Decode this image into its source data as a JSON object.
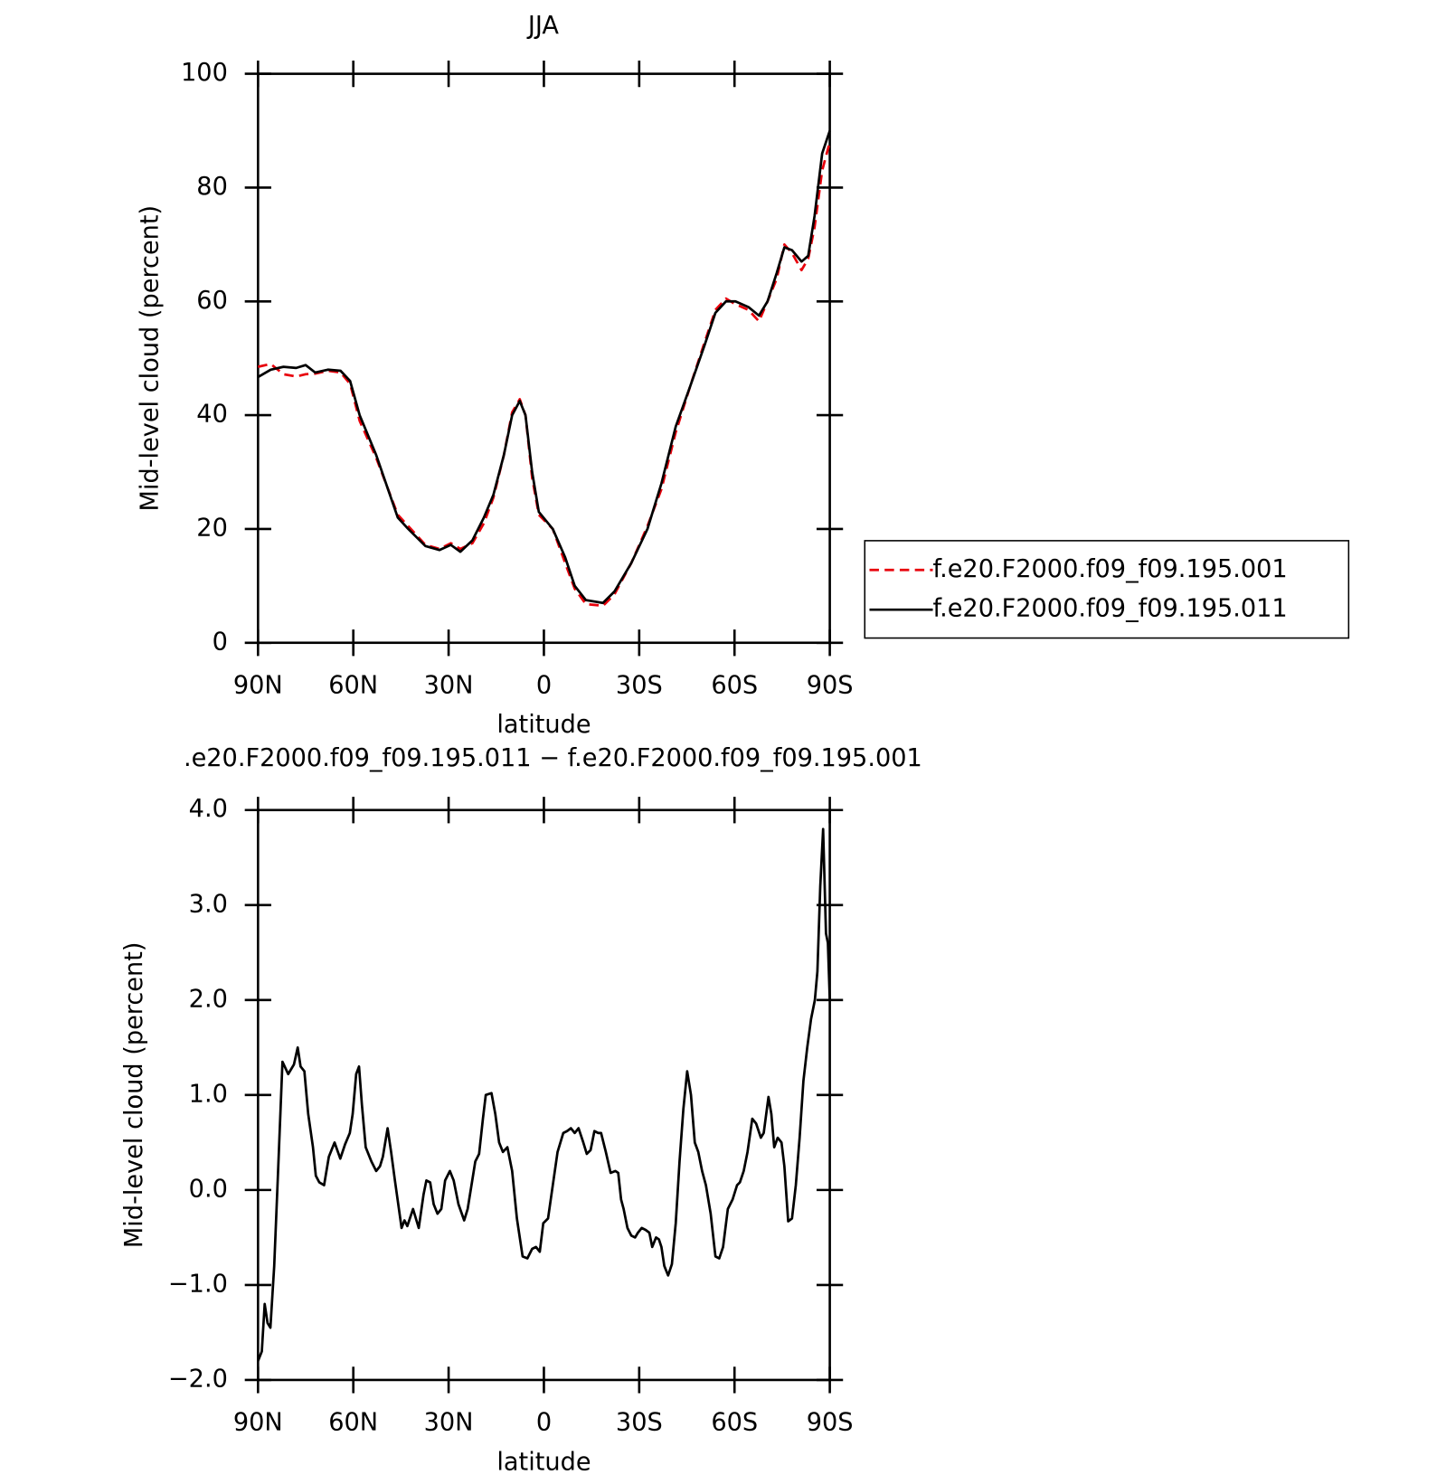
{
  "chart_data": [
    {
      "type": "line",
      "title": "JJA",
      "xlabel": "latitude",
      "ylabel": "Mid-level cloud (percent)",
      "x": [
        90,
        86,
        82,
        78,
        75,
        72,
        68,
        64,
        61,
        58,
        52.8,
        46,
        42.7,
        37.3,
        32.9,
        29.3,
        26.3,
        22.5,
        18.9,
        15.9,
        12.6,
        10,
        7.6,
        5.8,
        3.7,
        1.6,
        -2.8,
        -6.7,
        -9.7,
        -13.2,
        -18.6,
        -22.2,
        -27.5,
        -32.6,
        -37,
        -41.5,
        -46,
        -50.4,
        -54,
        -57.3,
        -60.3,
        -64.4,
        -67.7,
        -70.4,
        -73.3,
        -75.7,
        -78.1,
        -81.1,
        -83.2,
        -85.2,
        -87.6,
        -90
      ],
      "series": [
        {
          "name": "f.e20.F2000.f09_f09.195.001",
          "color": "#e8000b",
          "dash": "dashed",
          "values": [
            48.5,
            49,
            47.2,
            46.8,
            47.2,
            47.3,
            47.8,
            47.5,
            45.5,
            39,
            32.5,
            22.5,
            20.5,
            17.2,
            16.5,
            17.5,
            16.5,
            17.5,
            21,
            25.5,
            33,
            40.5,
            42.8,
            40,
            29,
            22.5,
            20,
            14,
            9.5,
            6.8,
            6.5,
            8.5,
            14,
            20.5,
            27,
            37,
            45,
            52.5,
            58.5,
            60.5,
            59.5,
            58.5,
            56.5,
            60,
            64,
            70,
            68.5,
            65.5,
            67.5,
            73,
            83,
            88
          ]
        },
        {
          "name": "f.e20.F2000.f09_f09.195.011",
          "color": "#000000",
          "dash": "solid",
          "values": [
            46.7,
            48,
            48.5,
            48.3,
            48.8,
            47.5,
            48,
            47.8,
            46,
            40,
            33,
            22,
            20,
            17,
            16.3,
            17.2,
            16,
            18,
            22,
            26,
            33,
            40,
            42.5,
            40,
            30,
            23,
            20,
            15,
            10,
            7.5,
            7,
            9,
            14,
            20,
            28,
            38,
            45,
            52,
            58,
            60,
            60,
            59,
            57.5,
            60,
            65,
            69.5,
            69,
            67,
            68,
            75,
            86,
            90
          ]
        }
      ],
      "xlim": [
        90,
        -90
      ],
      "xticks": [
        {
          "value": 90,
          "label": "90N"
        },
        {
          "value": 60,
          "label": "60N"
        },
        {
          "value": 30,
          "label": "30N"
        },
        0,
        {
          "value": -30,
          "label": "30S"
        },
        {
          "value": -60,
          "label": "60S"
        },
        {
          "value": -90,
          "label": "90S"
        }
      ],
      "ylim": [
        0,
        100
      ],
      "yticks": [
        0,
        20,
        40,
        60,
        80,
        100
      ],
      "legend": "right"
    },
    {
      "type": "line",
      "title": ".e20.F2000.f09_f09.195.011 − f.e20.F2000.f09_f09.195.001",
      "xlabel": "latitude",
      "ylabel": "Mid-level cloud (percent)",
      "x": [
        90,
        88.8,
        87.9,
        87,
        86.1,
        84.9,
        83.8,
        82.3,
        80.5,
        78.7,
        77.5,
        76.6,
        75.4,
        74.2,
        72.7,
        71.8,
        70.7,
        69.2,
        67.7,
        65.9,
        64.1,
        62.6,
        61.1,
        60.2,
        59.1,
        58.2,
        57.3,
        56.1,
        54.3,
        52.8,
        51.6,
        50.7,
        49.2,
        48.1,
        46.9,
        44.8,
        43.9,
        43,
        41.2,
        39.4,
        37.9,
        37,
        35.8,
        34.7,
        33.5,
        32.3,
        31.1,
        29.6,
        28.4,
        26.9,
        25.1,
        24,
        22.8,
        21.6,
        20.4,
        19.2,
        18.3,
        16.5,
        15.3,
        14.1,
        12.9,
        11.5,
        10,
        8.5,
        6.7,
        5.2,
        3.7,
        2.5,
        1.3,
        0.2,
        -1.3,
        -2.8,
        -4.3,
        -6.1,
        -7.3,
        -8.5,
        -9.7,
        -10.9,
        -12.4,
        -13.5,
        -14.7,
        -15.9,
        -17.1,
        -18,
        -19.5,
        -21,
        -22.5,
        -23.4,
        -24.3,
        -25.1,
        -26.3,
        -27.5,
        -28.7,
        -29.6,
        -30.8,
        -32,
        -33.2,
        -34.1,
        -35.3,
        -36.2,
        -37,
        -37.9,
        -39.1,
        -40.3,
        -41.5,
        -42.7,
        -43.9,
        -45.1,
        -46.3,
        -47.5,
        -48.6,
        -49.8,
        -51,
        -52.5,
        -54,
        -55.2,
        -56.4,
        -57.9,
        -59.4,
        -60.8,
        -61.7,
        -62.9,
        -64.1,
        -65.6,
        -66.8,
        -68.3,
        -69.2,
        -70.7,
        -71.6,
        -72.5,
        -73.6,
        -74.8,
        -75.7,
        -76.9,
        -78.1,
        -79.3,
        -80.5,
        -81.7,
        -82.9,
        -84.1,
        -85.3,
        -86.1,
        -87,
        -87.9,
        -88.8,
        -89.4,
        -90
      ],
      "series": [
        {
          "color": "#000000",
          "dash": "solid",
          "values": [
            -1.8,
            -1.7,
            -1.2,
            -1.4,
            -1.45,
            -0.8,
            0.1,
            1.35,
            1.22,
            1.32,
            1.5,
            1.3,
            1.25,
            0.8,
            0.45,
            0.15,
            0.08,
            0.05,
            0.35,
            0.5,
            0.33,
            0.48,
            0.6,
            0.8,
            1.22,
            1.3,
            0.9,
            0.45,
            0.3,
            0.2,
            0.25,
            0.35,
            0.65,
            0.4,
            0.1,
            -0.4,
            -0.32,
            -0.38,
            -0.2,
            -0.4,
            -0.05,
            0.1,
            0.08,
            -0.15,
            -0.25,
            -0.2,
            0.1,
            0.2,
            0.1,
            -0.15,
            -0.32,
            -0.2,
            0.05,
            0.3,
            0.38,
            0.75,
            1.0,
            1.02,
            0.8,
            0.5,
            0.4,
            0.45,
            0.2,
            -0.3,
            -0.7,
            -0.72,
            -0.62,
            -0.6,
            -0.65,
            -0.35,
            -0.3,
            0.05,
            0.4,
            0.6,
            0.62,
            0.65,
            0.6,
            0.65,
            0.5,
            0.38,
            0.42,
            0.62,
            0.6,
            0.6,
            0.4,
            0.18,
            0.2,
            0.18,
            -0.1,
            -0.2,
            -0.4,
            -0.48,
            -0.5,
            -0.45,
            -0.4,
            -0.42,
            -0.45,
            -0.6,
            -0.5,
            -0.52,
            -0.6,
            -0.8,
            -0.9,
            -0.78,
            -0.35,
            0.3,
            0.85,
            1.25,
            1.0,
            0.5,
            0.4,
            0.2,
            0.05,
            -0.25,
            -0.7,
            -0.72,
            -0.6,
            -0.2,
            -0.1,
            0.05,
            0.08,
            0.2,
            0.4,
            0.75,
            0.7,
            0.55,
            0.6,
            0.98,
            0.8,
            0.45,
            0.55,
            0.5,
            0.25,
            -0.33,
            -0.3,
            0.05,
            0.55,
            1.15,
            1.5,
            1.8,
            2.0,
            2.3,
            3.2,
            3.8,
            2.7,
            2.6,
            2.0
          ]
        }
      ],
      "xlim": [
        90,
        -90
      ],
      "xticks": [
        {
          "value": 90,
          "label": "90N"
        },
        {
          "value": 60,
          "label": "60N"
        },
        {
          "value": 30,
          "label": "30N"
        },
        0,
        {
          "value": -30,
          "label": "30S"
        },
        {
          "value": -60,
          "label": "60S"
        },
        {
          "value": -90,
          "label": "90S"
        }
      ],
      "ylim": [
        -2,
        4
      ],
      "yticks": [
        {
          "value": -2,
          "label": "−2.0"
        },
        {
          "value": -1,
          "label": "−1.0"
        },
        {
          "value": 0,
          "label": "0.0"
        },
        {
          "value": 1,
          "label": "1.0"
        },
        {
          "value": 2,
          "label": "2.0"
        },
        {
          "value": 3,
          "label": "3.0"
        },
        {
          "value": 4,
          "label": "4.0"
        }
      ]
    }
  ]
}
